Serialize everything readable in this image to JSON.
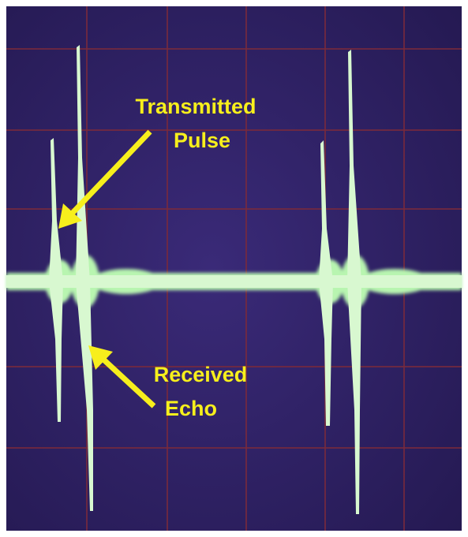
{
  "annotations": [
    {
      "lines": [
        "Transmitted",
        "Pulse"
      ]
    },
    {
      "lines": [
        "Received",
        "Echo"
      ]
    }
  ]
}
